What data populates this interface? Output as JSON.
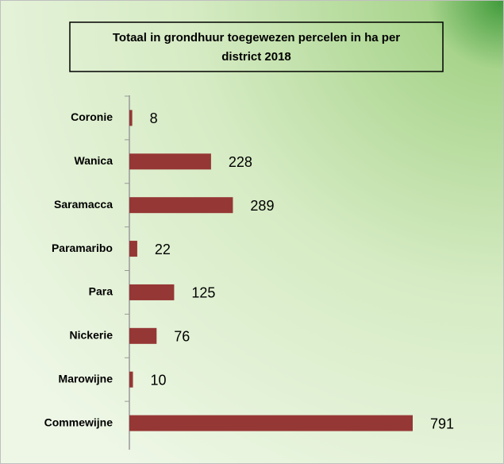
{
  "chart_data": {
    "type": "bar",
    "orientation": "horizontal",
    "title": [
      "Totaal in grondhuur toegewezen percelen in ha per",
      "district 2018"
    ],
    "categories": [
      "Coronie",
      "Wanica",
      "Saramacca",
      "Paramaribo",
      "Para",
      "Nickerie",
      "Marowijne",
      "Commewijne"
    ],
    "values": [
      8,
      228,
      289,
      22,
      125,
      76,
      10,
      791
    ],
    "color": "#953735"
  }
}
